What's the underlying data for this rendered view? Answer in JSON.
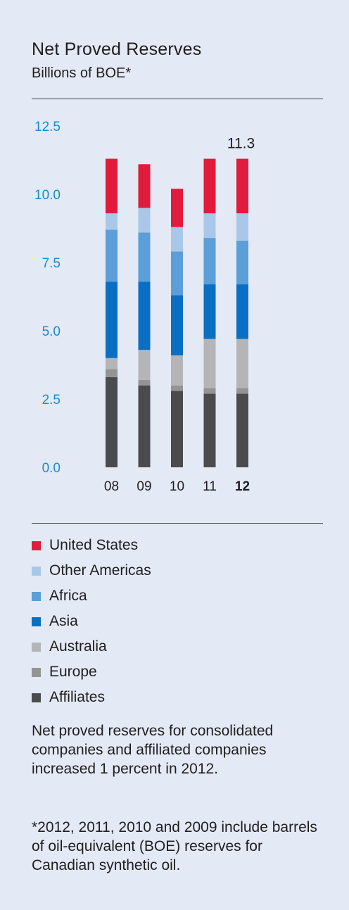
{
  "chart_data": {
    "type": "bar",
    "stacked": true,
    "title": "Net Proved Reserves",
    "subtitle": "Billions of BOE*",
    "categories": [
      "08",
      "09",
      "10",
      "11",
      "12"
    ],
    "highlight_category": "12",
    "ylim": [
      0,
      12.5
    ],
    "yticks": [
      "12.5",
      "10.0",
      "7.5",
      "5.0",
      "2.5",
      "0.0"
    ],
    "tick_values": [
      12.5,
      10.0,
      7.5,
      5.0,
      2.5,
      0.0
    ],
    "annotation": {
      "category": "12",
      "text": "11.3"
    },
    "series": [
      {
        "name": "Affiliates",
        "color": "#4a4b4d",
        "values": [
          3.3,
          3.0,
          2.8,
          2.7,
          2.7
        ]
      },
      {
        "name": "Europe",
        "color": "#949494",
        "values": [
          0.3,
          0.2,
          0.2,
          0.2,
          0.2
        ]
      },
      {
        "name": "Australia",
        "color": "#b4b5b7",
        "values": [
          0.4,
          1.1,
          1.1,
          1.8,
          1.8
        ]
      },
      {
        "name": "Asia",
        "color": "#0a6fc2",
        "values": [
          2.8,
          2.5,
          2.2,
          2.0,
          2.0
        ]
      },
      {
        "name": "Africa",
        "color": "#5b9ed8",
        "values": [
          1.9,
          1.8,
          1.6,
          1.7,
          1.6
        ]
      },
      {
        "name": "Other Americas",
        "color": "#a9c8e9",
        "values": [
          0.6,
          0.9,
          0.9,
          0.9,
          1.0
        ]
      },
      {
        "name": "United States",
        "color": "#e01b3c",
        "values": [
          2.0,
          1.6,
          1.4,
          2.0,
          2.0
        ]
      }
    ]
  },
  "legend": [
    {
      "label": "United States",
      "color": "#e01b3c"
    },
    {
      "label": "Other Americas",
      "color": "#a9c8e9"
    },
    {
      "label": "Africa",
      "color": "#5b9ed8"
    },
    {
      "label": "Asia",
      "color": "#0a6fc2"
    },
    {
      "label": "Australia",
      "color": "#b4b5b7"
    },
    {
      "label": "Europe",
      "color": "#949494"
    },
    {
      "label": "Affiliates",
      "color": "#4a4b4d"
    }
  ],
  "notes": {
    "summary": "Net proved reserves for consolidated companies and affiliated companies increased 1 percent in 2012.",
    "footnote": "*2012, 2011, 2010 and 2009 include barrels of oil-equivalent (BOE) reserves for Canadian synthetic oil."
  },
  "colors": {
    "axis_tick": "#1a8ccf",
    "background": "#e3e9f5",
    "rule": "#4a4a4a"
  }
}
